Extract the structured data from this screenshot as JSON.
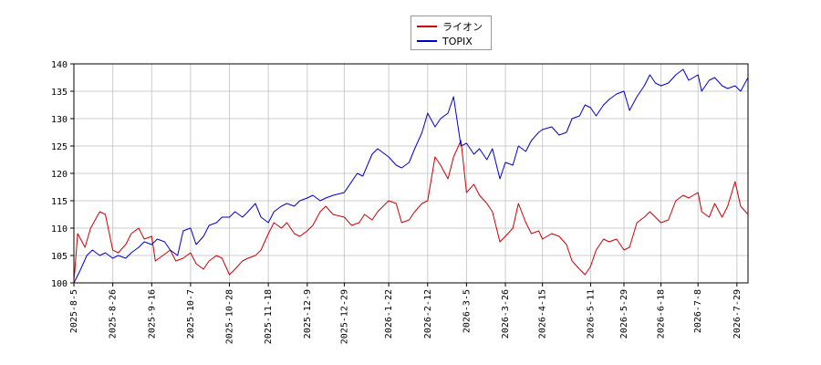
{
  "chart_data": {
    "type": "line",
    "title": "",
    "xlabel": "",
    "ylabel": "",
    "ylim": [
      100,
      140
    ],
    "yticks": [
      100,
      105,
      110,
      115,
      120,
      125,
      130,
      135,
      140
    ],
    "xlim": [
      "2025-08-05",
      "2026-08-04"
    ],
    "xticks": [
      "2025-8-5",
      "2025-8-26",
      "2025-9-16",
      "2025-10-7",
      "2025-10-28",
      "2025-11-18",
      "2025-12-9",
      "2025-12-29",
      "2026-1-22",
      "2026-2-12",
      "2026-3-5",
      "2026-3-26",
      "2026-4-15",
      "2026-5-11",
      "2026-5-29",
      "2026-6-18",
      "2026-7-8",
      "2026-7-29"
    ],
    "grid": true,
    "legend_position": "top-center",
    "series": [
      {
        "name": "ライオン",
        "color": "#cc0000",
        "points": [
          [
            "2025-08-05",
            100.0
          ],
          [
            "2025-08-07",
            109.0
          ],
          [
            "2025-08-11",
            106.5
          ],
          [
            "2025-08-14",
            110.0
          ],
          [
            "2025-08-19",
            113.0
          ],
          [
            "2025-08-22",
            112.5
          ],
          [
            "2025-08-26",
            106.0
          ],
          [
            "2025-08-29",
            105.5
          ],
          [
            "2025-09-02",
            107.0
          ],
          [
            "2025-09-05",
            109.0
          ],
          [
            "2025-09-09",
            110.0
          ],
          [
            "2025-09-12",
            108.0
          ],
          [
            "2025-09-16",
            108.5
          ],
          [
            "2025-09-18",
            104.0
          ],
          [
            "2025-09-22",
            105.0
          ],
          [
            "2025-09-26",
            106.0
          ],
          [
            "2025-09-29",
            104.0
          ],
          [
            "2025-10-03",
            104.5
          ],
          [
            "2025-10-07",
            105.5
          ],
          [
            "2025-10-10",
            103.5
          ],
          [
            "2025-10-14",
            102.5
          ],
          [
            "2025-10-17",
            104.0
          ],
          [
            "2025-10-21",
            105.0
          ],
          [
            "2025-10-24",
            104.5
          ],
          [
            "2025-10-28",
            101.5
          ],
          [
            "2025-10-31",
            102.5
          ],
          [
            "2025-11-04",
            104.0
          ],
          [
            "2025-11-07",
            104.5
          ],
          [
            "2025-11-11",
            105.0
          ],
          [
            "2025-11-14",
            106.0
          ],
          [
            "2025-11-18",
            109.0
          ],
          [
            "2025-11-21",
            111.0
          ],
          [
            "2025-11-25",
            110.0
          ],
          [
            "2025-11-28",
            111.0
          ],
          [
            "2025-12-02",
            109.0
          ],
          [
            "2025-12-05",
            108.5
          ],
          [
            "2025-12-09",
            109.5
          ],
          [
            "2025-12-12",
            110.5
          ],
          [
            "2025-12-16",
            113.0
          ],
          [
            "2025-12-19",
            114.0
          ],
          [
            "2025-12-23",
            112.5
          ],
          [
            "2025-12-29",
            112.0
          ],
          [
            "2026-01-02",
            110.5
          ],
          [
            "2026-01-06",
            111.0
          ],
          [
            "2026-01-09",
            112.5
          ],
          [
            "2026-01-13",
            111.5
          ],
          [
            "2026-01-16",
            113.0
          ],
          [
            "2026-01-22",
            115.0
          ],
          [
            "2026-01-26",
            114.5
          ],
          [
            "2026-01-29",
            111.0
          ],
          [
            "2026-02-02",
            111.5
          ],
          [
            "2026-02-05",
            113.0
          ],
          [
            "2026-02-09",
            114.5
          ],
          [
            "2026-02-12",
            115.0
          ],
          [
            "2026-02-16",
            123.0
          ],
          [
            "2026-02-19",
            121.5
          ],
          [
            "2026-02-23",
            119.0
          ],
          [
            "2026-02-26",
            123.0
          ],
          [
            "2026-03-02",
            126.0
          ],
          [
            "2026-03-05",
            116.5
          ],
          [
            "2026-03-09",
            118.0
          ],
          [
            "2026-03-12",
            116.0
          ],
          [
            "2026-03-16",
            114.5
          ],
          [
            "2026-03-19",
            113.0
          ],
          [
            "2026-03-23",
            107.5
          ],
          [
            "2026-03-26",
            108.5
          ],
          [
            "2026-03-30",
            110.0
          ],
          [
            "2026-04-02",
            114.5
          ],
          [
            "2026-04-06",
            111.0
          ],
          [
            "2026-04-09",
            109.0
          ],
          [
            "2026-04-13",
            109.5
          ],
          [
            "2026-04-15",
            108.0
          ],
          [
            "2026-04-20",
            109.0
          ],
          [
            "2026-04-24",
            108.5
          ],
          [
            "2026-04-28",
            107.0
          ],
          [
            "2026-05-01",
            104.0
          ],
          [
            "2026-05-05",
            102.5
          ],
          [
            "2026-05-08",
            101.5
          ],
          [
            "2026-05-11",
            103.0
          ],
          [
            "2026-05-14",
            106.0
          ],
          [
            "2026-05-18",
            108.0
          ],
          [
            "2026-05-21",
            107.5
          ],
          [
            "2026-05-25",
            108.0
          ],
          [
            "2026-05-29",
            106.0
          ],
          [
            "2026-06-01",
            106.5
          ],
          [
            "2026-06-05",
            111.0
          ],
          [
            "2026-06-09",
            112.0
          ],
          [
            "2026-06-12",
            113.0
          ],
          [
            "2026-06-15",
            112.0
          ],
          [
            "2026-06-18",
            111.0
          ],
          [
            "2026-06-22",
            111.5
          ],
          [
            "2026-06-26",
            115.0
          ],
          [
            "2026-06-30",
            116.0
          ],
          [
            "2026-07-03",
            115.5
          ],
          [
            "2026-07-08",
            116.5
          ],
          [
            "2026-07-10",
            113.0
          ],
          [
            "2026-07-14",
            112.0
          ],
          [
            "2026-07-17",
            114.5
          ],
          [
            "2026-07-21",
            112.0
          ],
          [
            "2026-07-24",
            114.0
          ],
          [
            "2026-07-28",
            118.5
          ],
          [
            "2026-07-31",
            114.0
          ],
          [
            "2026-08-04",
            112.5
          ]
        ]
      },
      {
        "name": "TOPIX",
        "color": "#0000cc",
        "points": [
          [
            "2025-08-05",
            100.0
          ],
          [
            "2025-08-08",
            102.0
          ],
          [
            "2025-08-12",
            105.0
          ],
          [
            "2025-08-15",
            106.0
          ],
          [
            "2025-08-19",
            105.0
          ],
          [
            "2025-08-22",
            105.5
          ],
          [
            "2025-08-26",
            104.5
          ],
          [
            "2025-08-29",
            105.0
          ],
          [
            "2025-09-02",
            104.5
          ],
          [
            "2025-09-05",
            105.5
          ],
          [
            "2025-09-09",
            106.5
          ],
          [
            "2025-09-12",
            107.5
          ],
          [
            "2025-09-16",
            107.0
          ],
          [
            "2025-09-19",
            108.0
          ],
          [
            "2025-09-23",
            107.5
          ],
          [
            "2025-09-26",
            106.0
          ],
          [
            "2025-09-30",
            105.0
          ],
          [
            "2025-10-03",
            109.5
          ],
          [
            "2025-10-07",
            110.0
          ],
          [
            "2025-10-10",
            107.0
          ],
          [
            "2025-10-14",
            108.5
          ],
          [
            "2025-10-17",
            110.5
          ],
          [
            "2025-10-21",
            111.0
          ],
          [
            "2025-10-24",
            112.0
          ],
          [
            "2025-10-28",
            112.0
          ],
          [
            "2025-10-31",
            113.0
          ],
          [
            "2025-11-04",
            112.0
          ],
          [
            "2025-11-07",
            113.0
          ],
          [
            "2025-11-11",
            114.5
          ],
          [
            "2025-11-14",
            112.0
          ],
          [
            "2025-11-18",
            111.0
          ],
          [
            "2025-11-21",
            113.0
          ],
          [
            "2025-11-25",
            114.0
          ],
          [
            "2025-11-28",
            114.5
          ],
          [
            "2025-12-02",
            114.0
          ],
          [
            "2025-12-05",
            115.0
          ],
          [
            "2025-12-09",
            115.5
          ],
          [
            "2025-12-12",
            116.0
          ],
          [
            "2025-12-16",
            115.0
          ],
          [
            "2025-12-19",
            115.5
          ],
          [
            "2025-12-23",
            116.0
          ],
          [
            "2025-12-29",
            116.5
          ],
          [
            "2026-01-05",
            120.0
          ],
          [
            "2026-01-08",
            119.5
          ],
          [
            "2026-01-13",
            123.5
          ],
          [
            "2026-01-16",
            124.5
          ],
          [
            "2026-01-22",
            123.0
          ],
          [
            "2026-01-26",
            121.5
          ],
          [
            "2026-01-29",
            121.0
          ],
          [
            "2026-02-02",
            122.0
          ],
          [
            "2026-02-05",
            124.5
          ],
          [
            "2026-02-09",
            127.5
          ],
          [
            "2026-02-12",
            131.0
          ],
          [
            "2026-02-16",
            128.5
          ],
          [
            "2026-02-19",
            130.0
          ],
          [
            "2026-02-23",
            131.0
          ],
          [
            "2026-02-26",
            134.0
          ],
          [
            "2026-03-02",
            125.0
          ],
          [
            "2026-03-05",
            125.5
          ],
          [
            "2026-03-09",
            123.5
          ],
          [
            "2026-03-12",
            124.5
          ],
          [
            "2026-03-16",
            122.5
          ],
          [
            "2026-03-19",
            124.5
          ],
          [
            "2026-03-23",
            119.0
          ],
          [
            "2026-03-26",
            122.0
          ],
          [
            "2026-03-30",
            121.5
          ],
          [
            "2026-04-02",
            125.0
          ],
          [
            "2026-04-06",
            124.0
          ],
          [
            "2026-04-09",
            126.0
          ],
          [
            "2026-04-13",
            127.5
          ],
          [
            "2026-04-15",
            128.0
          ],
          [
            "2026-04-20",
            128.5
          ],
          [
            "2026-04-24",
            127.0
          ],
          [
            "2026-04-28",
            127.5
          ],
          [
            "2026-05-01",
            130.0
          ],
          [
            "2026-05-05",
            130.5
          ],
          [
            "2026-05-08",
            132.5
          ],
          [
            "2026-05-11",
            132.0
          ],
          [
            "2026-05-14",
            130.5
          ],
          [
            "2026-05-18",
            132.5
          ],
          [
            "2026-05-21",
            133.5
          ],
          [
            "2026-05-25",
            134.5
          ],
          [
            "2026-05-29",
            135.0
          ],
          [
            "2026-06-01",
            131.5
          ],
          [
            "2026-06-05",
            134.0
          ],
          [
            "2026-06-09",
            136.0
          ],
          [
            "2026-06-12",
            138.0
          ],
          [
            "2026-06-15",
            136.5
          ],
          [
            "2026-06-18",
            136.0
          ],
          [
            "2026-06-22",
            136.5
          ],
          [
            "2026-06-26",
            138.0
          ],
          [
            "2026-06-30",
            139.0
          ],
          [
            "2026-07-03",
            137.0
          ],
          [
            "2026-07-08",
            138.0
          ],
          [
            "2026-07-10",
            135.0
          ],
          [
            "2026-07-14",
            137.0
          ],
          [
            "2026-07-17",
            137.5
          ],
          [
            "2026-07-21",
            136.0
          ],
          [
            "2026-07-24",
            135.5
          ],
          [
            "2026-07-28",
            136.0
          ],
          [
            "2026-07-31",
            135.0
          ],
          [
            "2026-08-04",
            137.5
          ]
        ]
      }
    ]
  }
}
